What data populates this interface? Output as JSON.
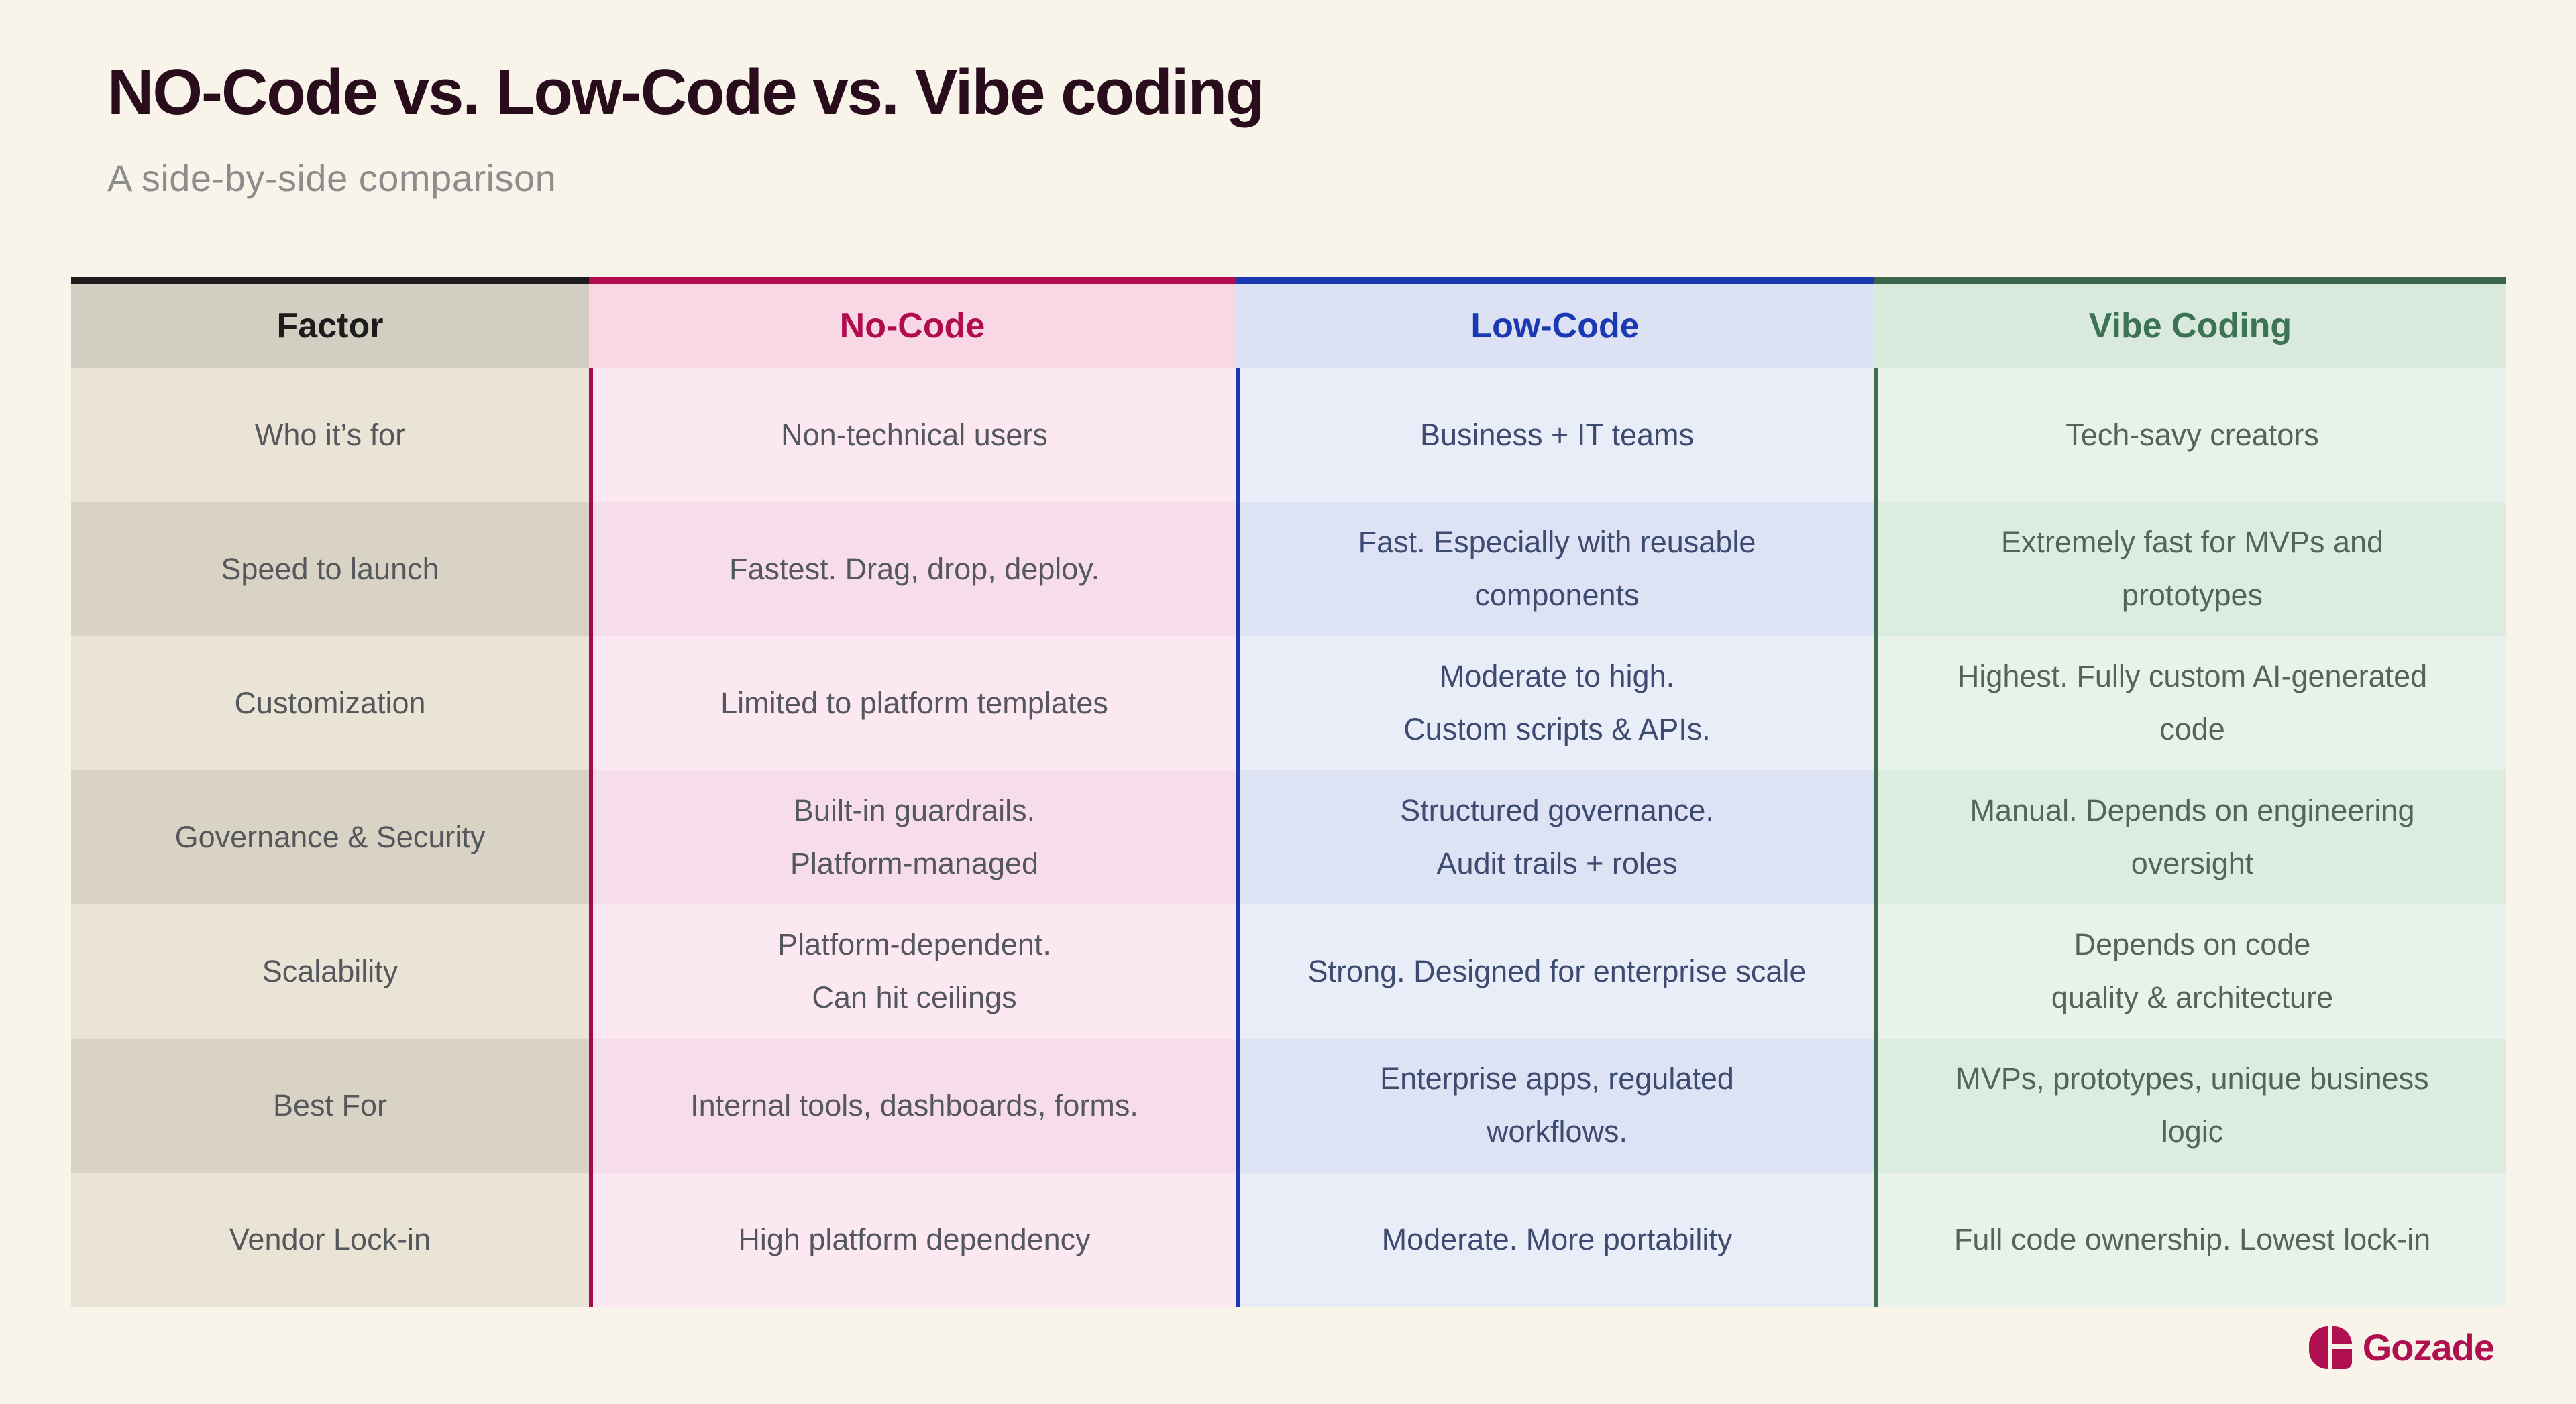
{
  "header": {
    "title": "NO-Code  vs. Low-Code vs. Vibe coding",
    "subtitle": "A side-by-side comparison"
  },
  "table": {
    "columns": [
      {
        "label": "Factor"
      },
      {
        "label": "No-Code"
      },
      {
        "label": "Low-Code"
      },
      {
        "label": "Vibe Coding"
      }
    ],
    "rows": [
      {
        "factor": "Who it’s for",
        "no_code": "Non-technical users",
        "low_code": "Business + IT teams",
        "vibe": "Tech-savy creators"
      },
      {
        "factor": "Speed to launch",
        "no_code": "Fastest. Drag, drop, deploy.",
        "low_code": "Fast. Especially with reusable\ncomponents",
        "vibe": "Extremely fast for MVPs and\nprototypes"
      },
      {
        "factor": "Customization",
        "no_code": "Limited to platform templates",
        "low_code": "Moderate to high.\nCustom scripts & APIs.",
        "vibe": "Highest. Fully custom AI-generated\ncode"
      },
      {
        "factor": "Governance & Security",
        "no_code": "Built-in guardrails.\nPlatform-managed",
        "low_code": "Structured governance.\nAudit trails + roles",
        "vibe": "Manual. Depends on engineering\noversight"
      },
      {
        "factor": "Scalability",
        "no_code": "Platform-dependent.\nCan hit ceilings",
        "low_code": "Strong. Designed for enterprise scale",
        "vibe": "Depends on code\nquality & architecture"
      },
      {
        "factor": "Best For",
        "no_code": "Internal tools, dashboards, forms.",
        "low_code": "Enterprise apps, regulated\nworkflows.",
        "vibe": "MVPs, prototypes, unique business\nlogic"
      },
      {
        "factor": "Vendor Lock-in",
        "no_code": "High platform dependency",
        "low_code": "Moderate. More portability",
        "vibe": "Full code ownership. Lowest lock-in"
      }
    ]
  },
  "footer": {
    "brand": "Gozade"
  },
  "colors": {
    "page_background": "#f8f4ea",
    "factor_accent": "#1d1d1d",
    "no_code_accent": "#b00c4e",
    "low_code_accent": "#1c39b4",
    "vibe_accent": "#3e6e52",
    "brand": "#b01050"
  }
}
